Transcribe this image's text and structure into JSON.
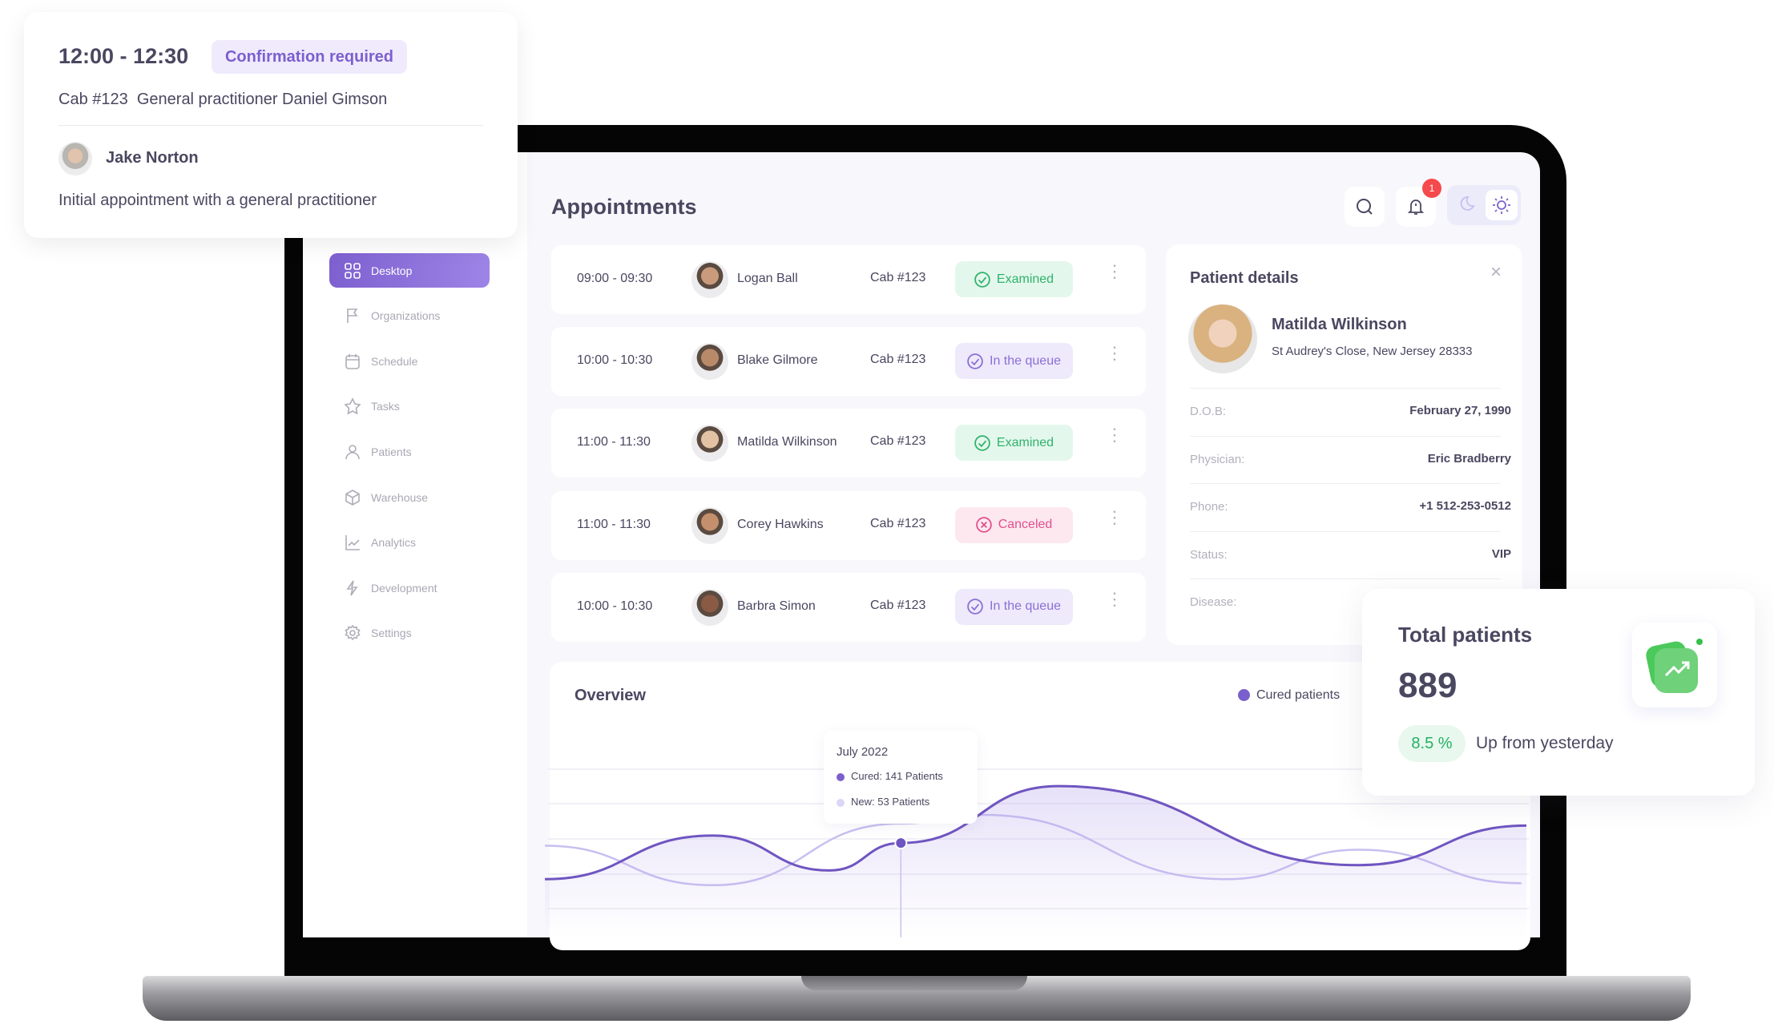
{
  "popup": {
    "time": "12:00 - 12:30",
    "badge": "Confirmation required",
    "cab_line": "Cab #123  General practitioner Daniel Gimson",
    "patient": "Jake Norton",
    "description": "Initial appointment with a general practitioner"
  },
  "sidebar": {
    "items": [
      {
        "label": "Desktop",
        "icon": "grid-icon",
        "active": true
      },
      {
        "label": "Organizations",
        "icon": "flag-icon"
      },
      {
        "label": "Schedule",
        "icon": "calendar-icon"
      },
      {
        "label": "Tasks",
        "icon": "star-icon"
      },
      {
        "label": "Patients",
        "icon": "user-icon"
      },
      {
        "label": "Warehouse",
        "icon": "box-icon"
      },
      {
        "label": "Analytics",
        "icon": "chart-line-icon"
      },
      {
        "label": "Development",
        "icon": "lightning-icon"
      },
      {
        "label": "Settings",
        "icon": "gear-icon"
      }
    ]
  },
  "header": {
    "title": "Appointments",
    "notification_count": "1",
    "theme": "light"
  },
  "appointments": [
    {
      "time": "09:00 - 09:30",
      "name": "Logan Ball",
      "cab": "Cab #123",
      "status": "Examined"
    },
    {
      "time": "10:00 - 10:30",
      "name": "Blake Gilmore",
      "cab": "Cab #123",
      "status": "In the queue"
    },
    {
      "time": "11:00 - 11:30",
      "name": "Matilda Wilkinson",
      "cab": "Cab #123",
      "status": "Examined"
    },
    {
      "time": "11:00 - 11:30",
      "name": "Corey Hawkins",
      "cab": "Cab #123",
      "status": "Canceled"
    },
    {
      "time": "10:00 - 10:30",
      "name": "Barbra Simon",
      "cab": "Cab #123",
      "status": "In the queue"
    }
  ],
  "status_colors": {
    "Examined": {
      "bg": "#e4f7ec",
      "fg": "#2fb36c"
    },
    "In the queue": {
      "bg": "#eee9fb",
      "fg": "#8a6fd6"
    },
    "Canceled": {
      "bg": "#fde8f0",
      "fg": "#e2508a"
    }
  },
  "patient_details": {
    "title": "Patient details",
    "name": "Matilda Wilkinson",
    "address": "St Audrey's Close, New Jersey 28333",
    "fields": [
      {
        "label": "D.O.B:",
        "value": "February 27, 1990"
      },
      {
        "label": "Physician:",
        "value": "Eric Bradberry"
      },
      {
        "label": "Phone:",
        "value": "+1 512-253-0512"
      },
      {
        "label": "Status:",
        "value": "VIP"
      },
      {
        "label": "Disease:",
        "value": ""
      }
    ]
  },
  "overview": {
    "title": "Overview",
    "legend": "Cured patients",
    "tooltip": {
      "title": "July 2022",
      "cured_label": "Cured:",
      "cured_value": "141 Patients",
      "new_label": "New:",
      "new_value": "53 Patients"
    }
  },
  "total_patients": {
    "title": "Total patients",
    "value": "889",
    "change": "8.5 %",
    "change_text": "Up from yesterday"
  },
  "chart_data": {
    "type": "area",
    "title": "Overview",
    "legend_position": "top-right",
    "grid": true,
    "xlim": [
      0,
      19.3
    ],
    "ylim": [
      0,
      250
    ],
    "highlight": {
      "x": 7,
      "y": 141,
      "label": "July 2022"
    },
    "series": [
      {
        "name": "Cured patients",
        "color": "#6f55c0",
        "points": [
          [
            0,
            87
          ],
          [
            3.3,
            152
          ],
          [
            5.6,
            100
          ],
          [
            7,
            141
          ],
          [
            10.1,
            226
          ],
          [
            16,
            108
          ],
          [
            19.3,
            167
          ]
        ]
      },
      {
        "color": "#c9bff0",
        "points": [
          [
            0,
            137
          ],
          [
            3.3,
            78
          ],
          [
            7,
            170
          ],
          [
            8.6,
            183
          ],
          [
            13.4,
            87
          ],
          [
            16,
            131
          ],
          [
            19.2,
            81
          ]
        ]
      }
    ]
  }
}
